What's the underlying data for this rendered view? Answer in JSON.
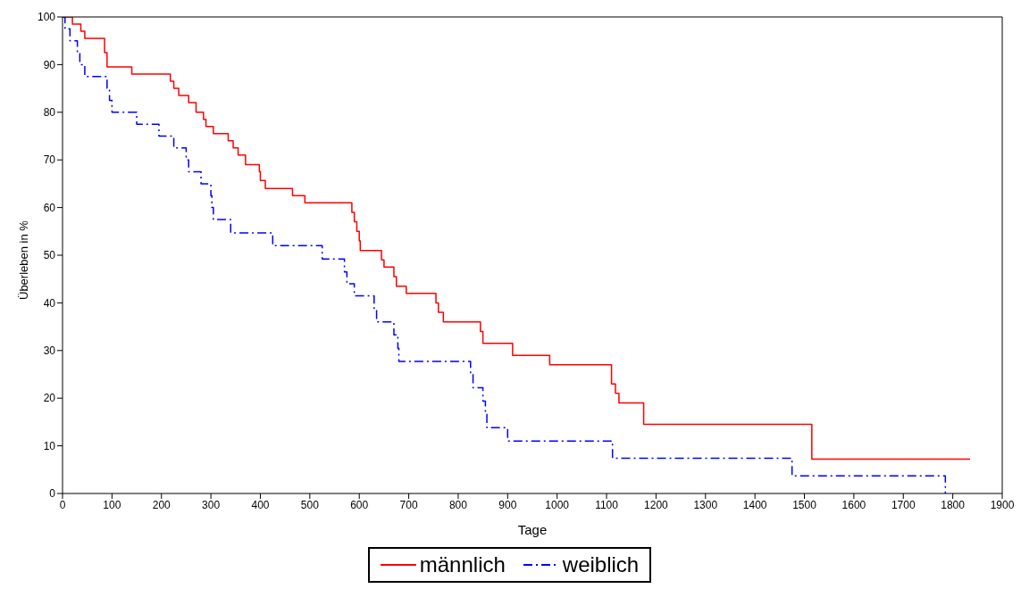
{
  "chart_data": {
    "type": "step",
    "xlabel": "Tage",
    "ylabel": "Überleben in %",
    "xlim": [
      0,
      1900
    ],
    "ylim": [
      0,
      100
    ],
    "xticks": [
      0,
      100,
      200,
      300,
      400,
      500,
      600,
      700,
      800,
      900,
      1000,
      1100,
      1200,
      1300,
      1400,
      1500,
      1600,
      1700,
      1800,
      1900
    ],
    "yticks": [
      0,
      10,
      20,
      30,
      40,
      50,
      60,
      70,
      80,
      90,
      100
    ],
    "grid": false,
    "legend": "bottom",
    "marker": "none",
    "series": [
      {
        "name": "männlich",
        "color": "#ff0000",
        "line_style": "solid",
        "x": [
          0,
          20,
          37,
          45,
          85,
          90,
          140,
          218,
          225,
          235,
          255,
          270,
          285,
          290,
          305,
          335,
          345,
          355,
          370,
          398,
          400,
          410,
          465,
          490,
          585,
          590,
          595,
          600,
          602,
          645,
          650,
          670,
          675,
          695,
          755,
          760,
          770,
          845,
          850,
          910,
          985,
          1110,
          1118,
          1125,
          1175,
          1515,
          1835
        ],
        "values": [
          100,
          98.5,
          97,
          95.5,
          92.5,
          89.5,
          88,
          86.5,
          85,
          83.5,
          82,
          80,
          78.5,
          77,
          75.5,
          74,
          72.5,
          71,
          69,
          67.5,
          65.7,
          64,
          62.5,
          61,
          59,
          57,
          55,
          53,
          51,
          49,
          47.5,
          45.5,
          43.5,
          42,
          40,
          38,
          36,
          34,
          31.5,
          29,
          27,
          23,
          21,
          19,
          14.5,
          7.2,
          7.2
        ]
      },
      {
        "name": "weiblich",
        "color": "#0000ff",
        "line_style": "dashed",
        "x": [
          0,
          5,
          15,
          30,
          35,
          45,
          90,
          95,
          100,
          150,
          195,
          225,
          250,
          255,
          280,
          300,
          302,
          305,
          340,
          425,
          525,
          570,
          575,
          590,
          630,
          635,
          670,
          678,
          680,
          825,
          830,
          850,
          855,
          858,
          900,
          1112,
          1475,
          1785
        ],
        "values": [
          100,
          97.5,
          95,
          92.5,
          90,
          87.5,
          85,
          82.5,
          80,
          77.5,
          75,
          72.5,
          70,
          67.5,
          65,
          62.5,
          60,
          57.5,
          54.7,
          52,
          49.2,
          46.5,
          44,
          41.5,
          38.7,
          36,
          33.3,
          30.5,
          27.7,
          25,
          22.2,
          19.4,
          16.6,
          13.8,
          11,
          7.4,
          3.7,
          0
        ]
      }
    ]
  }
}
